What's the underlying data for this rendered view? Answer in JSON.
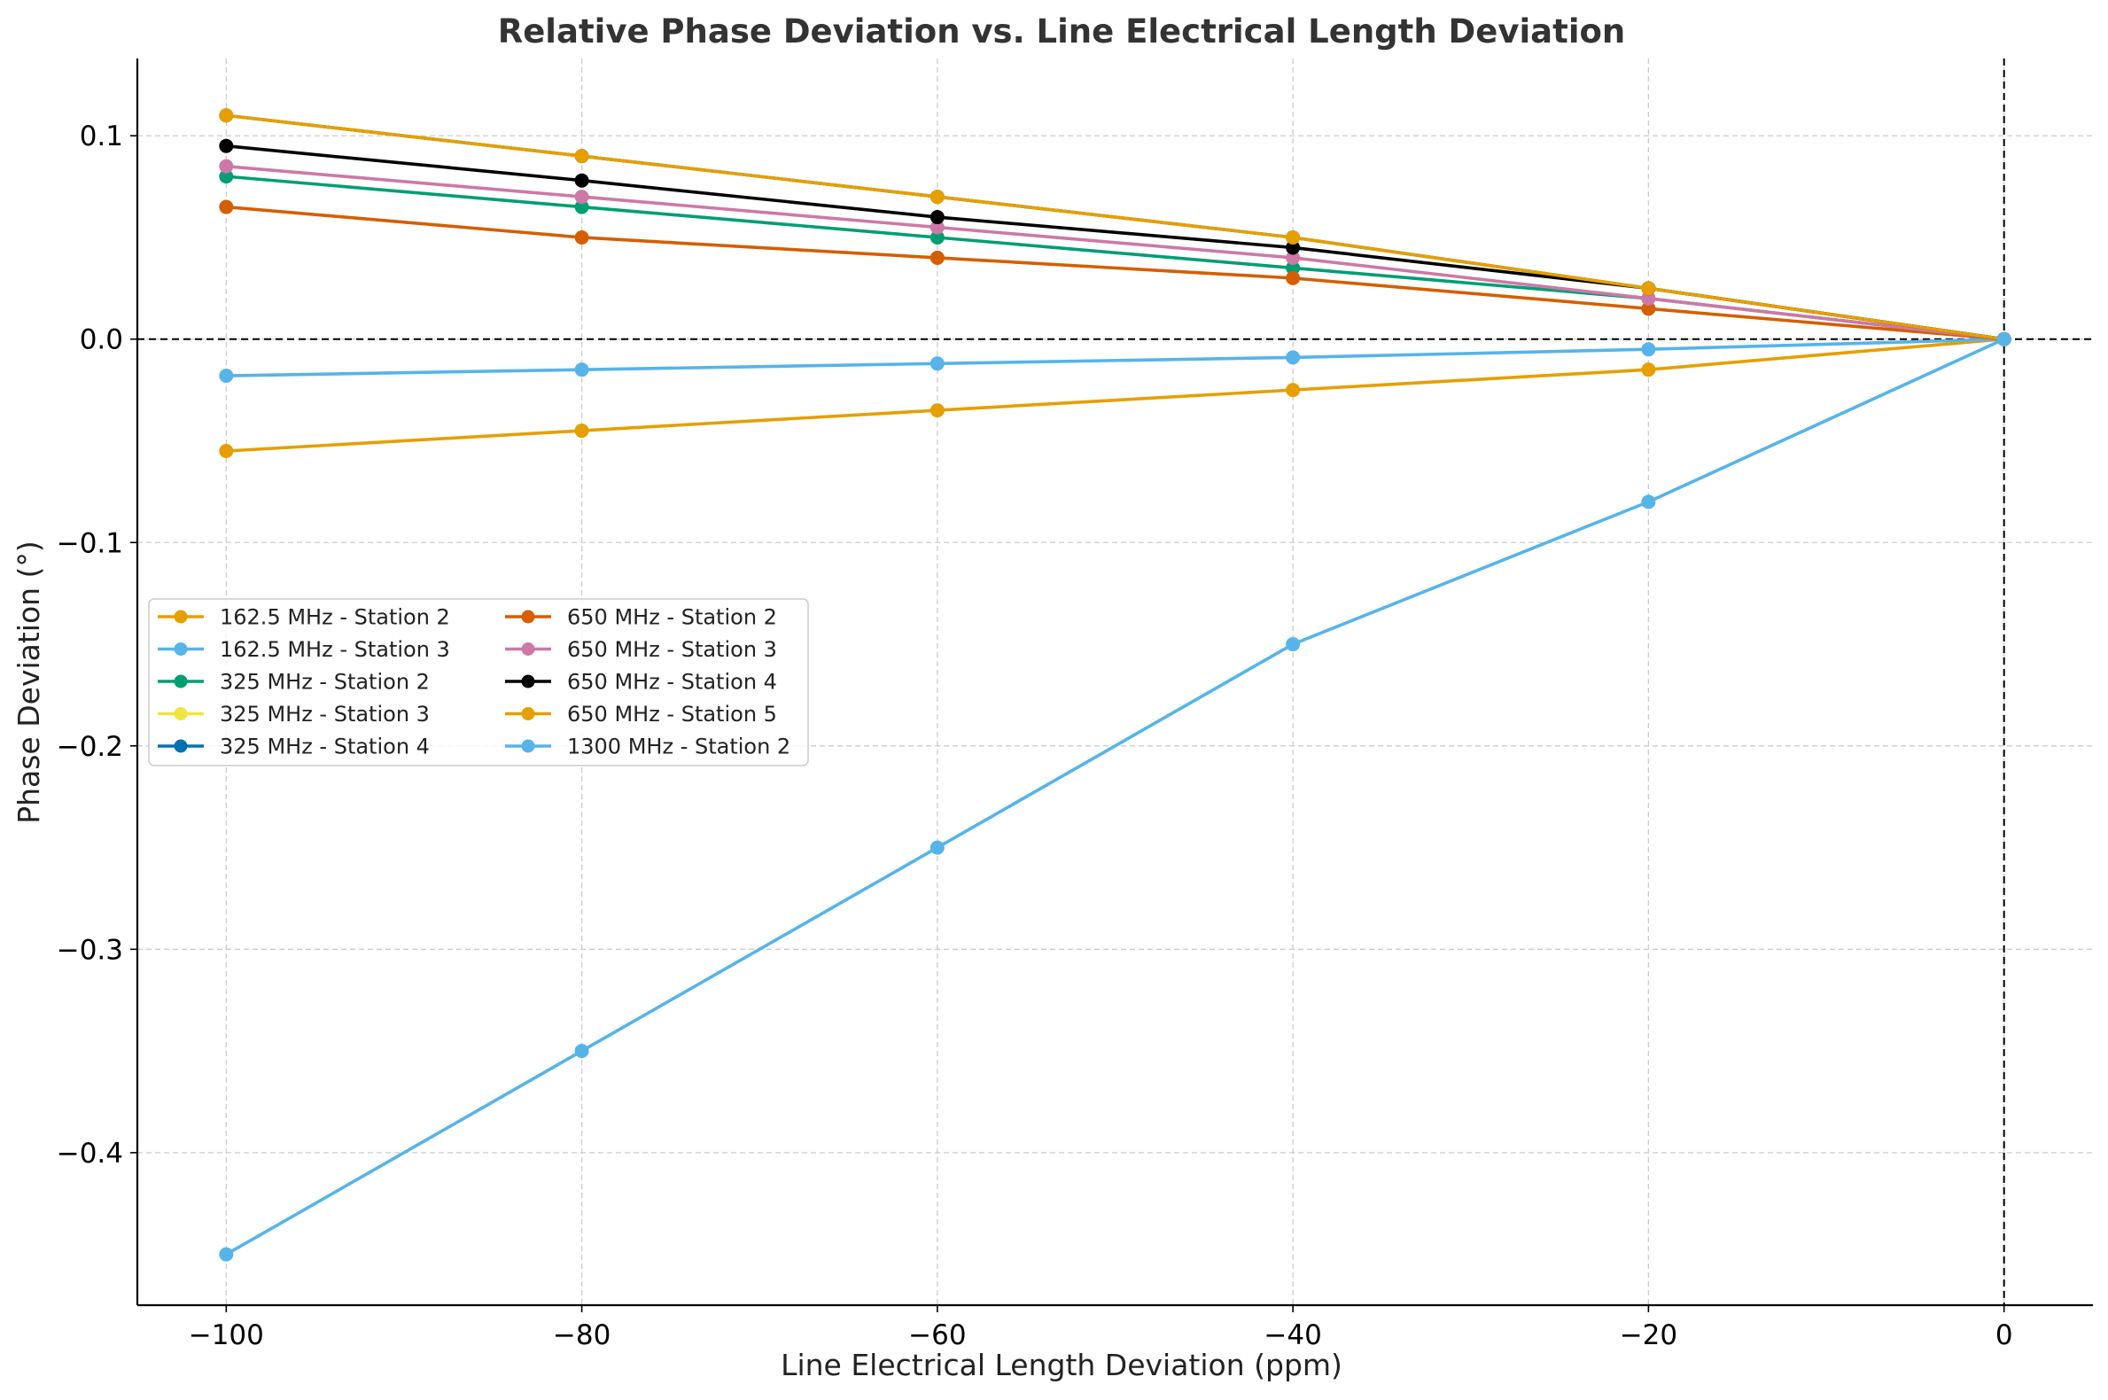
{
  "chart_data": {
    "type": "line",
    "title": "Relative Phase Deviation vs. Line Electrical Length Deviation",
    "xlabel": "Line Electrical Length Deviation (ppm)",
    "ylabel": "Phase Deviation (°)",
    "xlim": [
      -105,
      5
    ],
    "ylim": [
      -0.475,
      0.138
    ],
    "x": [
      -100,
      -80,
      -60,
      -40,
      -20,
      0
    ],
    "xticks": [
      -100,
      -80,
      -60,
      -40,
      -20,
      0
    ],
    "xtick_labels": [
      "−100",
      "−80",
      "−60",
      "−40",
      "−20",
      "0"
    ],
    "yticks": [
      0.1,
      0.0,
      -0.1,
      -0.2,
      -0.3,
      -0.4
    ],
    "ytick_labels": [
      "0.1",
      "0.0",
      "−0.1",
      "−0.2",
      "−0.3",
      "−0.4"
    ],
    "grid": true,
    "reference_lines": {
      "x": 0,
      "y": 0
    },
    "legend_position": "center-left",
    "series": [
      {
        "name": "162.5 MHz - Station 2",
        "color": "#E69F00",
        "values": [
          -0.055,
          -0.045,
          -0.035,
          -0.025,
          -0.015,
          0.0
        ]
      },
      {
        "name": "162.5 MHz - Station 3",
        "color": "#56B4E9",
        "values": [
          -0.018,
          -0.015,
          -0.012,
          -0.009,
          -0.005,
          0.0
        ]
      },
      {
        "name": "325 MHz - Station 2",
        "color": "#009E73",
        "values": [
          0.08,
          0.065,
          0.05,
          0.035,
          0.02,
          0.0
        ]
      },
      {
        "name": "325 MHz - Station 3",
        "color": "#F0E442",
        "values": [
          0.11,
          0.09,
          0.07,
          0.05,
          0.025,
          0.0
        ]
      },
      {
        "name": "325 MHz - Station 4",
        "color": "#0072B2",
        "values": [
          0.11,
          0.09,
          0.07,
          0.05,
          0.025,
          0.0
        ]
      },
      {
        "name": "650 MHz - Station 2",
        "color": "#D55E00",
        "values": [
          0.065,
          0.05,
          0.04,
          0.03,
          0.015,
          0.0
        ]
      },
      {
        "name": "650 MHz - Station 3",
        "color": "#CC79A7",
        "values": [
          0.085,
          0.07,
          0.055,
          0.04,
          0.02,
          0.0
        ]
      },
      {
        "name": "650 MHz - Station 4",
        "color": "#000000",
        "values": [
          0.095,
          0.078,
          0.06,
          0.045,
          0.025,
          0.0
        ]
      },
      {
        "name": "650 MHz - Station 5",
        "color": "#E69F00",
        "values": [
          0.11,
          0.09,
          0.07,
          0.05,
          0.025,
          0.0
        ]
      },
      {
        "name": "1300 MHz - Station 2",
        "color": "#56B4E9",
        "values": [
          -0.45,
          -0.35,
          -0.25,
          -0.15,
          -0.08,
          0.0
        ]
      }
    ]
  }
}
